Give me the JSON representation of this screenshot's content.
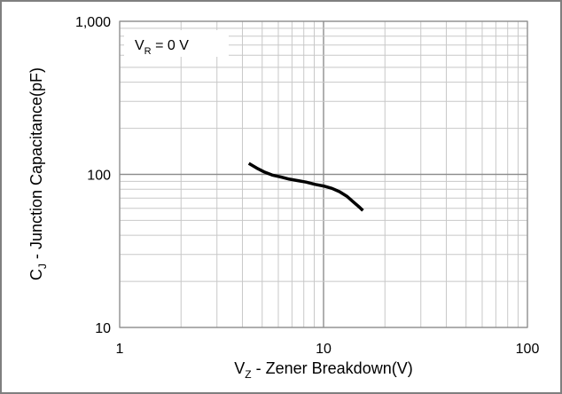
{
  "chart_data": {
    "type": "line",
    "x_scale": "log",
    "y_scale": "log",
    "xlim": [
      1,
      100
    ],
    "ylim": [
      10,
      1000
    ],
    "grid": true,
    "legend": "none",
    "title": "",
    "xlabel": {
      "main": "V",
      "sub": "Z",
      "rest": " - Zener Breakdown(V)"
    },
    "ylabel": {
      "main": "C",
      "sub": "J",
      "rest": " - Junction Capacitance(pF)"
    },
    "x_ticks": [
      {
        "value": 1,
        "label": "1"
      },
      {
        "value": 10,
        "label": "10"
      },
      {
        "value": 100,
        "label": "100"
      }
    ],
    "y_ticks": [
      {
        "value": 10,
        "label": "10"
      },
      {
        "value": 100,
        "label": "100"
      },
      {
        "value": 1000,
        "label": "1,000"
      }
    ],
    "annotation": {
      "main": "V",
      "sub": "R",
      "rest": " = 0 V"
    },
    "series": [
      {
        "color": "#000000",
        "points": [
          [
            4.3,
            118
          ],
          [
            4.7,
            110
          ],
          [
            5.1,
            104
          ],
          [
            5.6,
            99
          ],
          [
            6.2,
            96
          ],
          [
            6.8,
            93
          ],
          [
            7.5,
            91
          ],
          [
            8.2,
            89
          ],
          [
            9.1,
            86
          ],
          [
            10,
            84
          ],
          [
            11,
            81
          ],
          [
            12,
            77
          ],
          [
            13,
            72
          ],
          [
            14,
            66
          ],
          [
            15,
            61
          ],
          [
            15.6,
            58
          ]
        ]
      }
    ]
  }
}
